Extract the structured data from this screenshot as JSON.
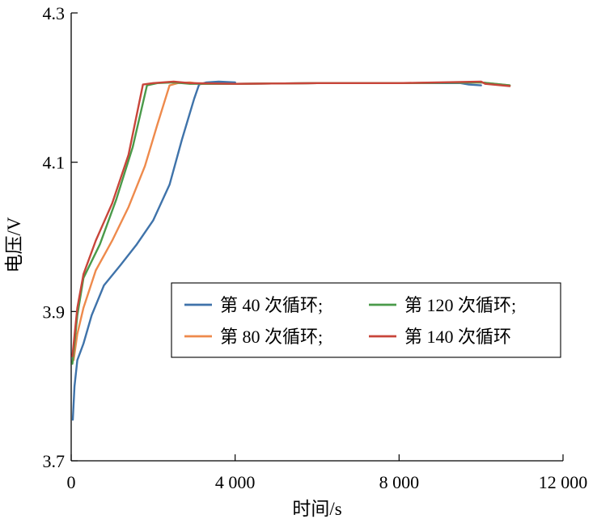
{
  "chart_data": {
    "type": "line",
    "xlabel": "时间/s",
    "ylabel": "电压/V",
    "xlim": [
      0,
      12000
    ],
    "ylim": [
      3.7,
      4.3
    ],
    "x_ticks": [
      0,
      4000,
      8000,
      12000
    ],
    "x_tick_labels": [
      "0",
      "4 000",
      "8 000",
      "12 000"
    ],
    "y_ticks": [
      3.7,
      3.9,
      4.1,
      4.3
    ],
    "y_tick_labels": [
      "3.7",
      "3.9",
      "4.1",
      "4.3"
    ],
    "grid": false,
    "legend_position": "center-right",
    "series": [
      {
        "name": "第 40 次循环;",
        "color": "#3f73aa",
        "points": [
          [
            40,
            3.755
          ],
          [
            80,
            3.8
          ],
          [
            150,
            3.835
          ],
          [
            300,
            3.857
          ],
          [
            500,
            3.895
          ],
          [
            800,
            3.935
          ],
          [
            1200,
            3.962
          ],
          [
            1600,
            3.99
          ],
          [
            2000,
            4.022
          ],
          [
            2400,
            4.07
          ],
          [
            2700,
            4.13
          ],
          [
            3000,
            4.185
          ],
          [
            3120,
            4.204
          ],
          [
            3300,
            4.207
          ],
          [
            3600,
            4.208
          ],
          [
            4000,
            4.207
          ],
          [
            3150,
            4.205
          ],
          [
            4000,
            4.205
          ],
          [
            6000,
            4.206
          ],
          [
            8000,
            4.206
          ],
          [
            9500,
            4.206
          ],
          [
            9700,
            4.204
          ],
          [
            10000,
            4.203
          ]
        ]
      },
      {
        "name": "第 80 次循环;",
        "color": "#ee8a4c",
        "points": [
          [
            60,
            3.835
          ],
          [
            150,
            3.87
          ],
          [
            300,
            3.905
          ],
          [
            600,
            3.955
          ],
          [
            1000,
            3.995
          ],
          [
            1400,
            4.04
          ],
          [
            1800,
            4.095
          ],
          [
            2100,
            4.15
          ],
          [
            2400,
            4.203
          ],
          [
            2600,
            4.206
          ],
          [
            2900,
            4.207
          ],
          [
            3150,
            4.205
          ],
          [
            4000,
            4.205
          ],
          [
            6000,
            4.206
          ],
          [
            8000,
            4.206
          ],
          [
            10000,
            4.207
          ],
          [
            10700,
            4.203
          ]
        ]
      },
      {
        "name": "第 120 次循环;",
        "color": "#4a9a4a",
        "points": [
          [
            30,
            3.83
          ],
          [
            150,
            3.895
          ],
          [
            300,
            3.945
          ],
          [
            700,
            3.99
          ],
          [
            1100,
            4.05
          ],
          [
            1500,
            4.12
          ],
          [
            1850,
            4.203
          ],
          [
            2100,
            4.206
          ],
          [
            2500,
            4.207
          ],
          [
            2900,
            4.205
          ],
          [
            4000,
            4.205
          ],
          [
            6000,
            4.206
          ],
          [
            8000,
            4.206
          ],
          [
            10000,
            4.207
          ],
          [
            10700,
            4.203
          ]
        ]
      },
      {
        "name": "第 140 次循环",
        "color": "#c8453a",
        "points": [
          [
            30,
            3.84
          ],
          [
            150,
            3.905
          ],
          [
            300,
            3.95
          ],
          [
            600,
            3.995
          ],
          [
            1000,
            4.045
          ],
          [
            1400,
            4.11
          ],
          [
            1750,
            4.204
          ],
          [
            2000,
            4.206
          ],
          [
            2500,
            4.208
          ],
          [
            2900,
            4.206
          ],
          [
            4000,
            4.205
          ],
          [
            6000,
            4.206
          ],
          [
            8000,
            4.206
          ],
          [
            10000,
            4.208
          ],
          [
            10100,
            4.205
          ],
          [
            10700,
            4.202
          ]
        ]
      }
    ]
  }
}
